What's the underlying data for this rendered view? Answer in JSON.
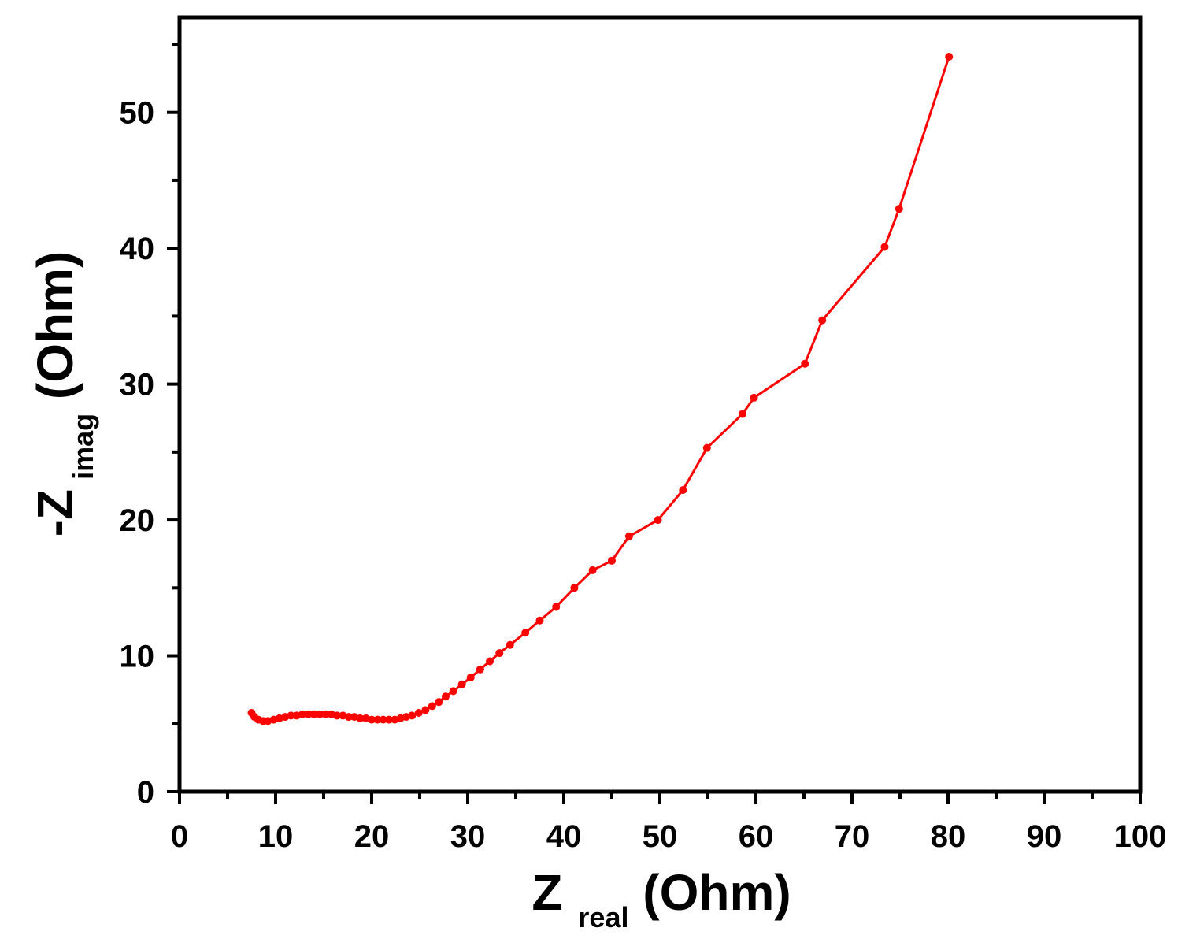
{
  "chart_data": {
    "type": "line",
    "title": "",
    "xlabel": {
      "main": "Z",
      "subscript": "real",
      "unit": " (Ohm)"
    },
    "ylabel": {
      "prefix": "-Z",
      "subscript": "imag",
      "unit": " (Ohm)"
    },
    "xlim": [
      0,
      100
    ],
    "ylim": [
      0,
      57
    ],
    "xticks": [
      0,
      10,
      20,
      30,
      40,
      50,
      60,
      70,
      80,
      90,
      100
    ],
    "yticks": [
      0,
      10,
      20,
      30,
      40,
      50
    ],
    "grid": false,
    "legend": "none",
    "series": [
      {
        "color": "#ff0000",
        "markers": true,
        "points": [
          [
            7.5,
            5.8
          ],
          [
            7.8,
            5.5
          ],
          [
            8.2,
            5.3
          ],
          [
            8.7,
            5.2
          ],
          [
            9.2,
            5.2
          ],
          [
            9.8,
            5.3
          ],
          [
            10.4,
            5.4
          ],
          [
            11.0,
            5.5
          ],
          [
            11.6,
            5.6
          ],
          [
            12.2,
            5.6
          ],
          [
            12.8,
            5.7
          ],
          [
            13.4,
            5.7
          ],
          [
            14.0,
            5.7
          ],
          [
            14.6,
            5.7
          ],
          [
            15.2,
            5.7
          ],
          [
            15.8,
            5.7
          ],
          [
            16.4,
            5.6
          ],
          [
            17.0,
            5.6
          ],
          [
            17.6,
            5.5
          ],
          [
            18.2,
            5.5
          ],
          [
            18.8,
            5.4
          ],
          [
            19.4,
            5.4
          ],
          [
            20.0,
            5.3
          ],
          [
            20.6,
            5.3
          ],
          [
            21.2,
            5.3
          ],
          [
            21.8,
            5.3
          ],
          [
            22.4,
            5.3
          ],
          [
            23.0,
            5.4
          ],
          [
            23.6,
            5.5
          ],
          [
            24.2,
            5.6
          ],
          [
            24.9,
            5.8
          ],
          [
            25.6,
            6.0
          ],
          [
            26.3,
            6.3
          ],
          [
            27.0,
            6.6
          ],
          [
            27.7,
            7.0
          ],
          [
            28.5,
            7.4
          ],
          [
            29.4,
            7.9
          ],
          [
            30.3,
            8.4
          ],
          [
            31.3,
            9.0
          ],
          [
            32.3,
            9.6
          ],
          [
            33.3,
            10.2
          ],
          [
            34.4,
            10.8
          ],
          [
            36.0,
            11.7
          ],
          [
            37.5,
            12.6
          ],
          [
            39.2,
            13.6
          ],
          [
            41.1,
            15.0
          ],
          [
            43.0,
            16.3
          ],
          [
            45.0,
            17.0
          ],
          [
            46.8,
            18.8
          ],
          [
            49.8,
            20.0
          ],
          [
            52.4,
            22.2
          ],
          [
            54.9,
            25.3
          ],
          [
            58.6,
            27.8
          ],
          [
            59.8,
            29.0
          ],
          [
            65.1,
            31.5
          ],
          [
            66.9,
            34.7
          ],
          [
            73.4,
            40.1
          ],
          [
            74.9,
            42.9
          ],
          [
            80.1,
            54.1
          ]
        ]
      }
    ]
  }
}
